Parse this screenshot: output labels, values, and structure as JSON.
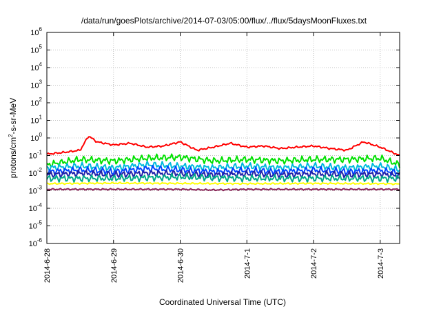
{
  "chart_data": {
    "type": "line",
    "title": "/data/run/goesPlots/archive/2014-07-03/05:00/flux/../flux/5daysMoonFluxes.txt",
    "xlabel": "Coordinated Universal Time (UTC)",
    "ylabel": "protons/cm2-s-sr-MeV",
    "ylabel_parts": {
      "base": "protons/cm",
      "sup": "2",
      "rest": "-s-sr-MeV"
    },
    "y_scale": "log",
    "ylim": [
      1e-06,
      1000000.0
    ],
    "xlim": [
      "2014-06-28",
      "2014-07-03 07:00"
    ],
    "grid": true,
    "x_ticks": [
      "2014-6-28",
      "2014-6-29",
      "2014-6-30",
      "2014-7-1",
      "2014-7-2",
      "2014-7-3"
    ],
    "y_ticks": [
      {
        "base": "10",
        "exp": "-6"
      },
      {
        "base": "10",
        "exp": "-5"
      },
      {
        "base": "10",
        "exp": "-4"
      },
      {
        "base": "10",
        "exp": "-3"
      },
      {
        "base": "10",
        "exp": "-2"
      },
      {
        "base": "10",
        "exp": "-1"
      },
      {
        "base": "10",
        "exp": "0"
      },
      {
        "base": "10",
        "exp": "1"
      },
      {
        "base": "10",
        "exp": "2"
      },
      {
        "base": "10",
        "exp": "3"
      },
      {
        "base": "10",
        "exp": "4"
      },
      {
        "base": "10",
        "exp": "5"
      },
      {
        "base": "10",
        "exp": "6"
      }
    ],
    "series": [
      {
        "color": "#ff0000",
        "points": [
          [
            "2014-06-28 00:00",
            0.12
          ],
          [
            "2014-06-28 06:00",
            0.15
          ],
          [
            "2014-06-28 12:00",
            0.2
          ],
          [
            "2014-06-28 15:00",
            1.3
          ],
          [
            "2014-06-28 18:00",
            0.6
          ],
          [
            "2014-06-29 00:00",
            0.4
          ],
          [
            "2014-06-29 06:00",
            0.5
          ],
          [
            "2014-06-29 12:00",
            0.3
          ],
          [
            "2014-06-29 18:00",
            0.35
          ],
          [
            "2014-06-30 00:00",
            0.6
          ],
          [
            "2014-06-30 06:00",
            0.2
          ],
          [
            "2014-06-30 12:00",
            0.3
          ],
          [
            "2014-06-30 18:00",
            0.5
          ],
          [
            "2014-07-01 00:00",
            0.3
          ],
          [
            "2014-07-01 06:00",
            0.35
          ],
          [
            "2014-07-01 12:00",
            0.25
          ],
          [
            "2014-07-01 18:00",
            0.3
          ],
          [
            "2014-07-02 00:00",
            0.35
          ],
          [
            "2014-07-02 06:00",
            0.25
          ],
          [
            "2014-07-02 12:00",
            0.2
          ],
          [
            "2014-07-02 18:00",
            0.6
          ],
          [
            "2014-07-03 00:00",
            0.3
          ],
          [
            "2014-07-03 07:00",
            0.1
          ]
        ]
      },
      {
        "color": "#00e000",
        "points": [
          [
            "2014-06-28 00:00",
            0.03
          ],
          [
            "2014-06-28 12:00",
            0.06
          ],
          [
            "2014-06-29 00:00",
            0.05
          ],
          [
            "2014-06-29 12:00",
            0.07
          ],
          [
            "2014-06-30 00:00",
            0.08
          ],
          [
            "2014-06-30 12:00",
            0.05
          ],
          [
            "2014-07-01 00:00",
            0.06
          ],
          [
            "2014-07-01 12:00",
            0.05
          ],
          [
            "2014-07-02 00:00",
            0.06
          ],
          [
            "2014-07-02 12:00",
            0.06
          ],
          [
            "2014-07-03 00:00",
            0.07
          ],
          [
            "2014-07-03 07:00",
            0.03
          ]
        ]
      },
      {
        "color": "#00bbdd",
        "points": [
          [
            "2014-06-28 00:00",
            0.02
          ],
          [
            "2014-06-28 12:00",
            0.025
          ],
          [
            "2014-06-29 00:00",
            0.02
          ],
          [
            "2014-06-29 12:00",
            0.03
          ],
          [
            "2014-06-30 00:00",
            0.025
          ],
          [
            "2014-06-30 12:00",
            0.02
          ],
          [
            "2014-07-01 00:00",
            0.025
          ],
          [
            "2014-07-01 12:00",
            0.02
          ],
          [
            "2014-07-02 00:00",
            0.025
          ],
          [
            "2014-07-02 12:00",
            0.02
          ],
          [
            "2014-07-03 00:00",
            0.025
          ],
          [
            "2014-07-03 07:00",
            0.015
          ]
        ]
      },
      {
        "color": "#0044ff",
        "points": [
          [
            "2014-06-28 00:00",
            0.012
          ],
          [
            "2014-06-28 12:00",
            0.015
          ],
          [
            "2014-06-29 00:00",
            0.012
          ],
          [
            "2014-06-29 12:00",
            0.018
          ],
          [
            "2014-06-30 00:00",
            0.015
          ],
          [
            "2014-06-30 12:00",
            0.012
          ],
          [
            "2014-07-01 00:00",
            0.014
          ],
          [
            "2014-07-01 12:00",
            0.012
          ],
          [
            "2014-07-02 00:00",
            0.015
          ],
          [
            "2014-07-02 12:00",
            0.012
          ],
          [
            "2014-07-03 00:00",
            0.014
          ],
          [
            "2014-07-03 07:00",
            0.01
          ]
        ]
      },
      {
        "color": "#2222aa",
        "points": [
          [
            "2014-06-28 00:00",
            0.008
          ],
          [
            "2014-06-28 12:00",
            0.01
          ],
          [
            "2014-06-29 00:00",
            0.008
          ],
          [
            "2014-06-29 12:00",
            0.01
          ],
          [
            "2014-06-30 00:00",
            0.009
          ],
          [
            "2014-06-30 12:00",
            0.008
          ],
          [
            "2014-07-01 00:00",
            0.009
          ],
          [
            "2014-07-01 12:00",
            0.008
          ],
          [
            "2014-07-02 00:00",
            0.009
          ],
          [
            "2014-07-02 12:00",
            0.008
          ],
          [
            "2014-07-03 00:00",
            0.009
          ],
          [
            "2014-07-03 07:00",
            0.007
          ]
        ]
      },
      {
        "color": "#00aa88",
        "points": [
          [
            "2014-06-28 00:00",
            0.005
          ],
          [
            "2014-06-29 00:00",
            0.005
          ],
          [
            "2014-06-30 00:00",
            0.006
          ],
          [
            "2014-07-01 00:00",
            0.005
          ],
          [
            "2014-07-02 00:00",
            0.005
          ],
          [
            "2014-07-03 00:00",
            0.005
          ],
          [
            "2014-07-03 07:00",
            0.005
          ]
        ]
      },
      {
        "color": "#ffff00",
        "points": [
          [
            "2014-06-28 00:00",
            0.0025
          ],
          [
            "2014-06-29 00:00",
            0.0027
          ],
          [
            "2014-06-30 00:00",
            0.0026
          ],
          [
            "2014-07-01 00:00",
            0.0025
          ],
          [
            "2014-07-02 00:00",
            0.0026
          ],
          [
            "2014-07-03 00:00",
            0.0025
          ],
          [
            "2014-07-03 07:00",
            0.0024
          ]
        ]
      },
      {
        "color": "#882255",
        "points": [
          [
            "2014-06-28 00:00",
            0.0012
          ],
          [
            "2014-06-29 00:00",
            0.0012
          ],
          [
            "2014-06-30 00:00",
            0.0012
          ],
          [
            "2014-06-30 12:00",
            0.0011
          ],
          [
            "2014-07-01 00:00",
            0.0012
          ],
          [
            "2014-07-02 00:00",
            0.0012
          ],
          [
            "2014-07-03 00:00",
            0.0012
          ],
          [
            "2014-07-03 07:00",
            0.0012
          ]
        ]
      }
    ]
  }
}
